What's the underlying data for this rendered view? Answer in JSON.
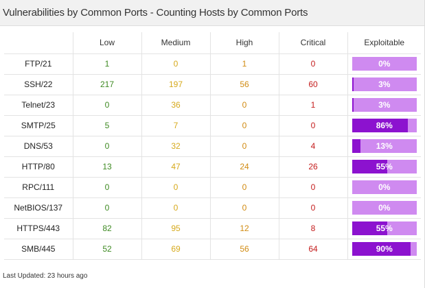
{
  "widget": {
    "title": "Vulnerabilities by Common Ports - Counting Hosts by Common Ports",
    "footer": "Last Updated: 23 hours ago"
  },
  "colors": {
    "low": "#3e8a22",
    "medium": "#d6a91b",
    "high": "#d18b12",
    "critical": "#c41c1c",
    "exploitable_bar": "#cf8af0",
    "exploitable_fill": "#8c12cf"
  },
  "table": {
    "headers": [
      "",
      "Low",
      "Medium",
      "High",
      "Critical",
      "Exploitable"
    ],
    "rows": [
      {
        "port": "FTP/21",
        "low": "1",
        "medium": "0",
        "high": "1",
        "critical": "0",
        "exploitable": "0%",
        "exploitable_pct": 0
      },
      {
        "port": "SSH/22",
        "low": "217",
        "medium": "197",
        "high": "56",
        "critical": "60",
        "exploitable": "3%",
        "exploitable_pct": 3
      },
      {
        "port": "Telnet/23",
        "low": "0",
        "medium": "36",
        "high": "0",
        "critical": "1",
        "exploitable": "3%",
        "exploitable_pct": 3
      },
      {
        "port": "SMTP/25",
        "low": "5",
        "medium": "7",
        "high": "0",
        "critical": "0",
        "exploitable": "86%",
        "exploitable_pct": 86
      },
      {
        "port": "DNS/53",
        "low": "0",
        "medium": "32",
        "high": "0",
        "critical": "4",
        "exploitable": "13%",
        "exploitable_pct": 13
      },
      {
        "port": "HTTP/80",
        "low": "13",
        "medium": "47",
        "high": "24",
        "critical": "26",
        "exploitable": "55%",
        "exploitable_pct": 55
      },
      {
        "port": "RPC/111",
        "low": "0",
        "medium": "0",
        "high": "0",
        "critical": "0",
        "exploitable": "0%",
        "exploitable_pct": 0
      },
      {
        "port": "NetBIOS/137",
        "low": "0",
        "medium": "0",
        "high": "0",
        "critical": "0",
        "exploitable": "0%",
        "exploitable_pct": 0
      },
      {
        "port": "HTTPS/443",
        "low": "82",
        "medium": "95",
        "high": "12",
        "critical": "8",
        "exploitable": "55%",
        "exploitable_pct": 55
      },
      {
        "port": "SMB/445",
        "low": "52",
        "medium": "69",
        "high": "56",
        "critical": "64",
        "exploitable": "90%",
        "exploitable_pct": 90
      }
    ]
  }
}
